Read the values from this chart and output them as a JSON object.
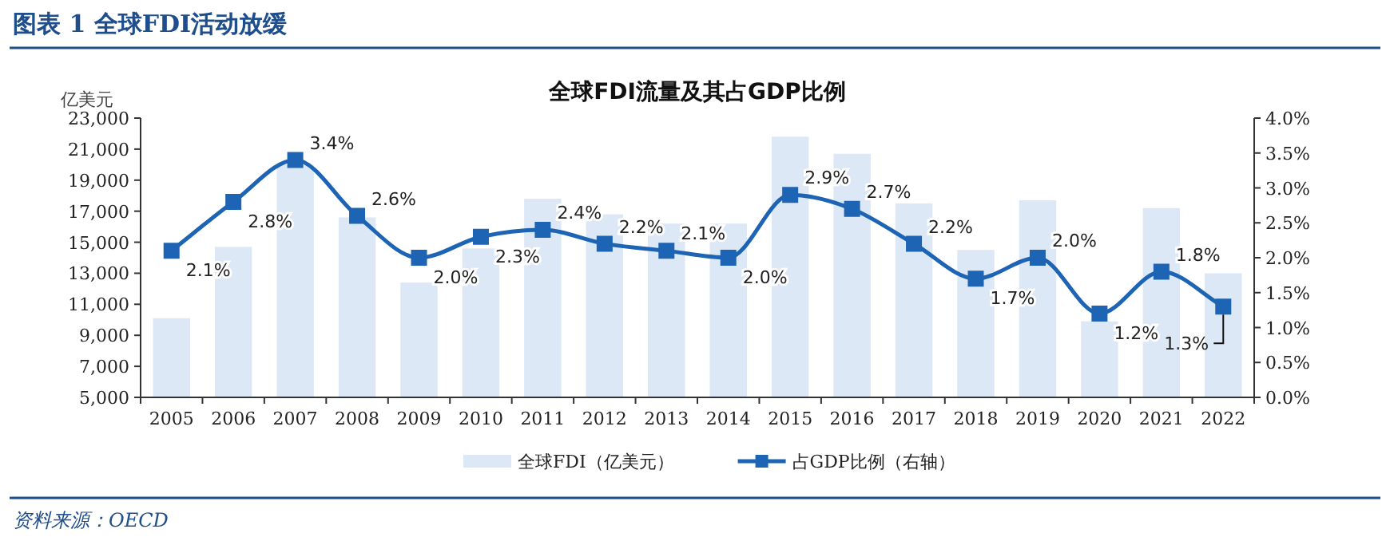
{
  "chart_data": {
    "type": "bar",
    "title": "图表 1  全球FDI活动放缓",
    "subtitle": "全球FDI流量及其占GDP比例",
    "ylabel": "亿美元",
    "annotations": [
      "资料来源：OECD"
    ],
    "categories": [
      "2005",
      "2006",
      "2007",
      "2008",
      "2009",
      "2010",
      "2011",
      "2012",
      "2013",
      "2014",
      "2015",
      "2016",
      "2017",
      "2018",
      "2019",
      "2020",
      "2021",
      "2022"
    ],
    "series": [
      {
        "name": "全球FDI（亿美元）",
        "type": "bar",
        "color": "#dce8f5",
        "values": [
          10100,
          14700,
          20000,
          16600,
          12400,
          14600,
          17800,
          16800,
          16200,
          16200,
          21800,
          20700,
          17500,
          14500,
          17700,
          9900,
          17200,
          13000
        ]
      },
      {
        "name": "占GDP比例（右轴）",
        "type": "line",
        "axis": "y2",
        "color": "#1e64b4",
        "marker": "square",
        "values": [
          2.1,
          2.8,
          3.4,
          2.6,
          2.0,
          2.3,
          2.4,
          2.2,
          2.1,
          2.0,
          2.9,
          2.7,
          2.2,
          1.7,
          2.0,
          1.2,
          1.8,
          1.3
        ],
        "value_labels": [
          "2.1%",
          "2.8%",
          "3.4%",
          "2.6%",
          "2.0%",
          "2.3%",
          "2.4%",
          "2.2%",
          "2.1%",
          "2.0%",
          "2.9%",
          "2.7%",
          "2.2%",
          "1.7%",
          "2.0%",
          "1.2%",
          "1.8%",
          "1.3%"
        ]
      }
    ],
    "ylim": [
      5000,
      23000
    ],
    "yticks": [
      {
        "value": 5000,
        "label": "5,000"
      },
      {
        "value": 7000,
        "label": "7,000"
      },
      {
        "value": 9000,
        "label": "9,000"
      },
      {
        "value": 11000,
        "label": "11,000"
      },
      {
        "value": 13000,
        "label": "13,000"
      },
      {
        "value": 15000,
        "label": "15,000"
      },
      {
        "value": 17000,
        "label": "17,000"
      },
      {
        "value": 19000,
        "label": "19,000"
      },
      {
        "value": 21000,
        "label": "21,000"
      },
      {
        "value": 23000,
        "label": "23,000"
      }
    ],
    "y2lim": [
      0,
      4
    ],
    "y2ticks": [
      {
        "value": 0,
        "label": "0.0%"
      },
      {
        "value": 0.5,
        "label": "0.5%"
      },
      {
        "value": 1,
        "label": "1.0%"
      },
      {
        "value": 1.5,
        "label": "1.5%"
      },
      {
        "value": 2,
        "label": "2.0%"
      },
      {
        "value": 2.5,
        "label": "2.5%"
      },
      {
        "value": 3,
        "label": "3.0%"
      },
      {
        "value": 3.5,
        "label": "3.5%"
      },
      {
        "value": 4,
        "label": "4.0%"
      }
    ],
    "grid": false,
    "legend": "bottom"
  }
}
